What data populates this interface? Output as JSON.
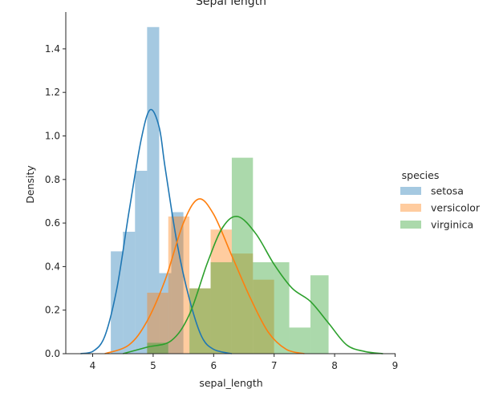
{
  "chart_data": {
    "type": "histogram+kde",
    "title": "Sepal length",
    "xlabel": "sepal_length",
    "ylabel": "Density",
    "xlim": [
      3.6,
      9.0
    ],
    "ylim": [
      0,
      1.55
    ],
    "xticks": [
      "4",
      "5",
      "6",
      "7",
      "8",
      "9"
    ],
    "yticks": [
      "0.0",
      "0.2",
      "0.4",
      "0.6",
      "0.8",
      "1.0",
      "1.2",
      "1.4"
    ],
    "legend": {
      "title": "species",
      "position": "right",
      "entries": [
        "setosa",
        "versicolor",
        "virginica"
      ]
    },
    "grid": false,
    "series": [
      {
        "name": "setosa",
        "color": "#1f77b4",
        "bins": [
          [
            4.3,
            4.5,
            0.47
          ],
          [
            4.5,
            4.7,
            0.56
          ],
          [
            4.7,
            4.9,
            0.84
          ],
          [
            4.9,
            5.1,
            1.5
          ],
          [
            5.1,
            5.3,
            0.37
          ],
          [
            5.3,
            5.5,
            0.65
          ],
          [
            5.5,
            5.8,
            0.0
          ]
        ],
        "kde": [
          [
            3.8,
            0.0
          ],
          [
            4.0,
            0.01
          ],
          [
            4.2,
            0.08
          ],
          [
            4.4,
            0.3
          ],
          [
            4.6,
            0.65
          ],
          [
            4.8,
            0.98
          ],
          [
            4.95,
            1.12
          ],
          [
            5.1,
            1.04
          ],
          [
            5.2,
            0.85
          ],
          [
            5.4,
            0.5
          ],
          [
            5.6,
            0.25
          ],
          [
            5.8,
            0.08
          ],
          [
            6.0,
            0.02
          ],
          [
            6.3,
            0.0
          ]
        ]
      },
      {
        "name": "versicolor",
        "color": "#ff7f0e",
        "bins": [
          [
            4.9,
            5.25,
            0.28
          ],
          [
            5.25,
            5.6,
            0.63
          ],
          [
            5.6,
            5.95,
            0.3
          ],
          [
            5.95,
            6.3,
            0.57
          ],
          [
            6.3,
            6.65,
            0.46
          ],
          [
            6.65,
            7.0,
            0.34
          ]
        ],
        "kde": [
          [
            4.2,
            0.0
          ],
          [
            4.6,
            0.04
          ],
          [
            4.9,
            0.15
          ],
          [
            5.2,
            0.34
          ],
          [
            5.5,
            0.6
          ],
          [
            5.75,
            0.71
          ],
          [
            6.0,
            0.64
          ],
          [
            6.3,
            0.45
          ],
          [
            6.6,
            0.26
          ],
          [
            6.9,
            0.1
          ],
          [
            7.2,
            0.02
          ],
          [
            7.5,
            0.0
          ]
        ]
      },
      {
        "name": "virginica",
        "color": "#2ca02c",
        "bins": [
          [
            4.9,
            5.25,
            0.05
          ],
          [
            5.25,
            5.6,
            0.0
          ],
          [
            5.6,
            5.95,
            0.3
          ],
          [
            5.95,
            6.3,
            0.42
          ],
          [
            6.3,
            6.65,
            0.9
          ],
          [
            6.65,
            7.0,
            0.42
          ],
          [
            7.0,
            7.25,
            0.42
          ],
          [
            7.25,
            7.6,
            0.12
          ],
          [
            7.6,
            7.9,
            0.36
          ]
        ],
        "kde": [
          [
            4.5,
            0.0
          ],
          [
            4.9,
            0.03
          ],
          [
            5.3,
            0.06
          ],
          [
            5.6,
            0.18
          ],
          [
            5.9,
            0.42
          ],
          [
            6.15,
            0.58
          ],
          [
            6.4,
            0.63
          ],
          [
            6.7,
            0.55
          ],
          [
            7.0,
            0.41
          ],
          [
            7.3,
            0.3
          ],
          [
            7.6,
            0.24
          ],
          [
            7.9,
            0.14
          ],
          [
            8.2,
            0.04
          ],
          [
            8.5,
            0.01
          ],
          [
            8.8,
            0.0
          ]
        ]
      }
    ]
  }
}
